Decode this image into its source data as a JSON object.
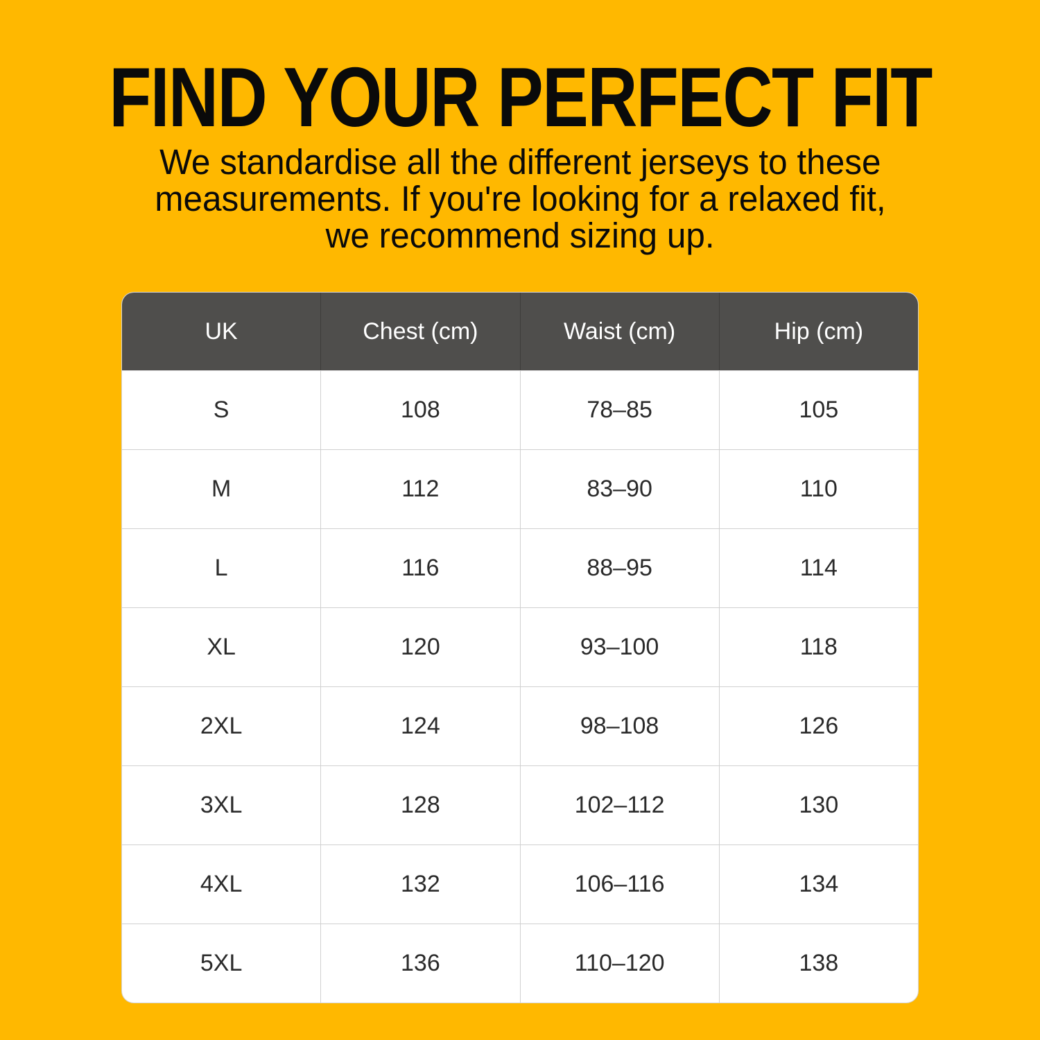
{
  "title": "FIND YOUR PERFECT FIT",
  "subtitle_lines": [
    "We standardise all the different jerseys to these",
    "measurements. If you're looking for a relaxed fit,",
    "we recommend sizing up."
  ],
  "colors": {
    "background": "#FFB800",
    "header": "#4F4E4C"
  },
  "table": {
    "headers": [
      "UK",
      "Chest (cm)",
      "Waist (cm)",
      "Hip (cm)"
    ],
    "rows": [
      [
        "S",
        "108",
        "78–85",
        "105"
      ],
      [
        "M",
        "112",
        "83–90",
        "110"
      ],
      [
        "L",
        "116",
        "88–95",
        "114"
      ],
      [
        "XL",
        "120",
        "93–100",
        "118"
      ],
      [
        "2XL",
        "124",
        "98–108",
        "126"
      ],
      [
        "3XL",
        "128",
        "102–112",
        "130"
      ],
      [
        "4XL",
        "132",
        "106–116",
        "134"
      ],
      [
        "5XL",
        "136",
        "110–120",
        "138"
      ]
    ]
  }
}
